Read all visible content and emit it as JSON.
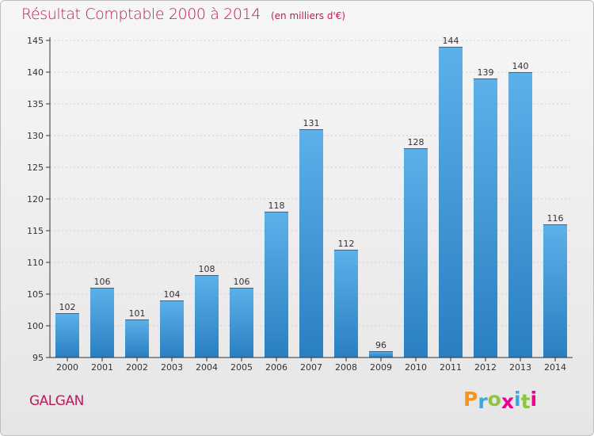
{
  "title": "Résultat Comptable 2000 à 2014",
  "unit": "(en milliers d'€)",
  "commune": "GALGAN",
  "brand": {
    "letters": [
      "P",
      "r",
      "o",
      "x",
      "i",
      "t",
      "i"
    ],
    "colors": [
      "#f7941d",
      "#3aa7e0",
      "#8cc63f",
      "#ec008c",
      "#3aa7e0",
      "#8cc63f",
      "#ec008c"
    ]
  },
  "colors": {
    "title": "#c2185b",
    "bar_light": "#5eb0ea",
    "bar_dark": "#2a7fc0",
    "axis": "#333333"
  },
  "chart_data": {
    "type": "bar",
    "categories": [
      "2000",
      "2001",
      "2002",
      "2003",
      "2004",
      "2005",
      "2006",
      "2007",
      "2008",
      "2009",
      "2010",
      "2011",
      "2012",
      "2013",
      "2014"
    ],
    "values": [
      102,
      106,
      101,
      104,
      108,
      106,
      118,
      131,
      112,
      96,
      128,
      144,
      139,
      140,
      116
    ],
    "ylim": [
      95,
      145
    ],
    "yticks": [
      95,
      100,
      105,
      110,
      115,
      120,
      125,
      130,
      135,
      140,
      145
    ],
    "grid": true,
    "legend": "none"
  }
}
